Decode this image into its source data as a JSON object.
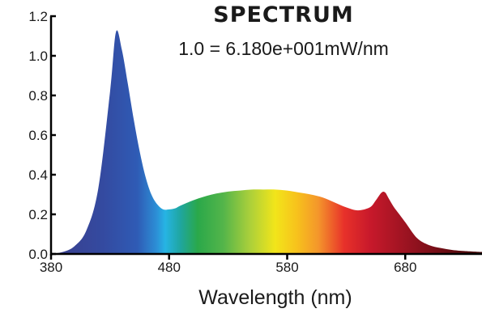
{
  "chart_data": {
    "type": "area",
    "title": "SPECTRUM",
    "subtitle": "1.0 = 6.180e+001mW/nm",
    "xlabel": "Wavelength (nm)",
    "ylabel": "",
    "xlim": [
      380,
      745
    ],
    "ylim": [
      0,
      1.2
    ],
    "x_ticks": [
      {
        "value": 380,
        "label": "380"
      },
      {
        "value": 480,
        "label": "480"
      },
      {
        "value": 580,
        "label": "580"
      },
      {
        "value": 680,
        "label": "680"
      }
    ],
    "y_ticks": [
      {
        "value": 0.0,
        "label": "0.0"
      },
      {
        "value": 0.2,
        "label": "0.2"
      },
      {
        "value": 0.4,
        "label": "0.4"
      },
      {
        "value": 0.6,
        "label": "0.6"
      },
      {
        "value": 0.8,
        "label": "0.8"
      },
      {
        "value": 1.0,
        "label": "1.0"
      },
      {
        "value": 1.2,
        "label": "1.2"
      }
    ],
    "grid": false,
    "fill": "wavelength-color-gradient",
    "x": [
      380,
      390,
      400,
      410,
      420,
      430,
      435,
      440,
      445,
      450,
      455,
      460,
      465,
      470,
      475,
      480,
      485,
      490,
      500,
      510,
      520,
      530,
      540,
      550,
      560,
      570,
      580,
      590,
      600,
      610,
      620,
      630,
      640,
      650,
      655,
      660,
      663,
      666,
      670,
      675,
      680,
      690,
      700,
      710,
      720,
      730,
      745
    ],
    "y": [
      0.0,
      0.01,
      0.04,
      0.12,
      0.33,
      0.82,
      1.12,
      1.03,
      0.86,
      0.68,
      0.52,
      0.39,
      0.3,
      0.25,
      0.225,
      0.225,
      0.23,
      0.245,
      0.27,
      0.29,
      0.305,
      0.315,
      0.32,
      0.325,
      0.325,
      0.325,
      0.32,
      0.31,
      0.3,
      0.285,
      0.26,
      0.235,
      0.22,
      0.235,
      0.27,
      0.31,
      0.31,
      0.28,
      0.24,
      0.2,
      0.16,
      0.08,
      0.045,
      0.03,
      0.02,
      0.015,
      0.01
    ]
  }
}
